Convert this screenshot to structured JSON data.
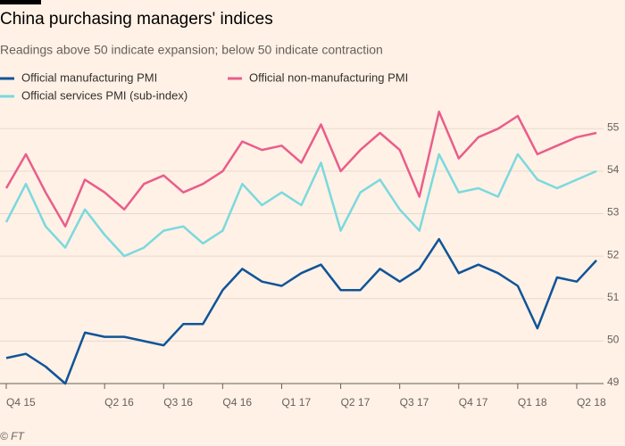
{
  "chart_data": {
    "type": "line",
    "title": "China purchasing managers' indices",
    "subtitle": "Readings above 50 indicate expansion; below 50 indicate contraction",
    "source": "© FT",
    "categories": [
      "Q4 15",
      null,
      null,
      null,
      null,
      "Q2 16",
      null,
      null,
      "Q3 16",
      null,
      null,
      "Q4 16",
      null,
      null,
      "Q1 17",
      null,
      null,
      "Q2 17",
      null,
      null,
      "Q3 17",
      null,
      null,
      "Q4 17",
      null,
      null,
      "Q1 18",
      null,
      null,
      "Q2 18",
      null
    ],
    "series": [
      {
        "name": "Official manufacturing PMI",
        "color": "#0f5499",
        "values": [
          49.6,
          49.7,
          49.4,
          49.0,
          50.2,
          50.1,
          50.1,
          50.0,
          49.9,
          50.4,
          50.4,
          51.2,
          51.7,
          51.4,
          51.3,
          51.6,
          51.8,
          51.2,
          51.2,
          51.7,
          51.4,
          51.7,
          52.4,
          51.6,
          51.8,
          51.6,
          51.3,
          50.3,
          51.5,
          51.4,
          51.9
        ]
      },
      {
        "name": "Official non-manufacturing PMI",
        "color": "#e95d8c",
        "values": [
          53.6,
          54.4,
          53.5,
          52.7,
          53.8,
          53.5,
          53.1,
          53.7,
          53.9,
          53.5,
          53.7,
          54.0,
          54.7,
          54.5,
          54.6,
          54.2,
          55.1,
          54.0,
          54.5,
          54.9,
          54.5,
          53.4,
          55.4,
          54.3,
          54.8,
          55.0,
          55.3,
          54.4,
          54.6,
          54.8,
          54.9
        ]
      },
      {
        "name": "Official services PMI (sub-index)",
        "color": "#7ad9de",
        "values": [
          52.8,
          53.7,
          52.7,
          52.2,
          53.1,
          52.5,
          52.0,
          52.2,
          52.6,
          52.7,
          52.3,
          52.6,
          53.7,
          53.2,
          53.5,
          53.2,
          54.2,
          52.6,
          53.5,
          53.8,
          53.1,
          52.6,
          54.4,
          53.5,
          53.6,
          53.4,
          54.4,
          53.8,
          53.6,
          53.8,
          54.0
        ]
      }
    ],
    "ylim": [
      49,
      55.3
    ],
    "yticks": [
      49,
      50,
      51,
      52,
      53,
      54,
      55
    ],
    "grid": true,
    "y_axis_side": "right"
  }
}
